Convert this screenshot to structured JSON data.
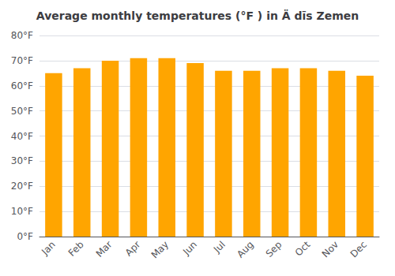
{
  "chart_data": {
    "type": "bar",
    "title": "Average monthly temperatures (°F ) in Ä dīs Zemen",
    "categories": [
      "Jan",
      "Feb",
      "Mar",
      "Apr",
      "May",
      "Jun",
      "Jul",
      "Aug",
      "Sep",
      "Oct",
      "Nov",
      "Dec"
    ],
    "values": [
      65,
      67,
      70,
      71,
      71,
      69,
      66,
      66,
      67,
      67,
      66,
      64
    ],
    "color": "#FFA500",
    "ylim": [
      0,
      80
    ],
    "yticks": [
      {
        "value": 0,
        "label": "0°F"
      },
      {
        "value": 10,
        "label": "10°F"
      },
      {
        "value": 20,
        "label": "20°F"
      },
      {
        "value": 30,
        "label": "30°F"
      },
      {
        "value": 40,
        "label": "40°F"
      },
      {
        "value": 50,
        "label": "50°F"
      },
      {
        "value": 60,
        "label": "60°F"
      },
      {
        "value": 70,
        "label": "70°F"
      },
      {
        "value": 80,
        "label": "80°F"
      }
    ],
    "grid": true
  }
}
